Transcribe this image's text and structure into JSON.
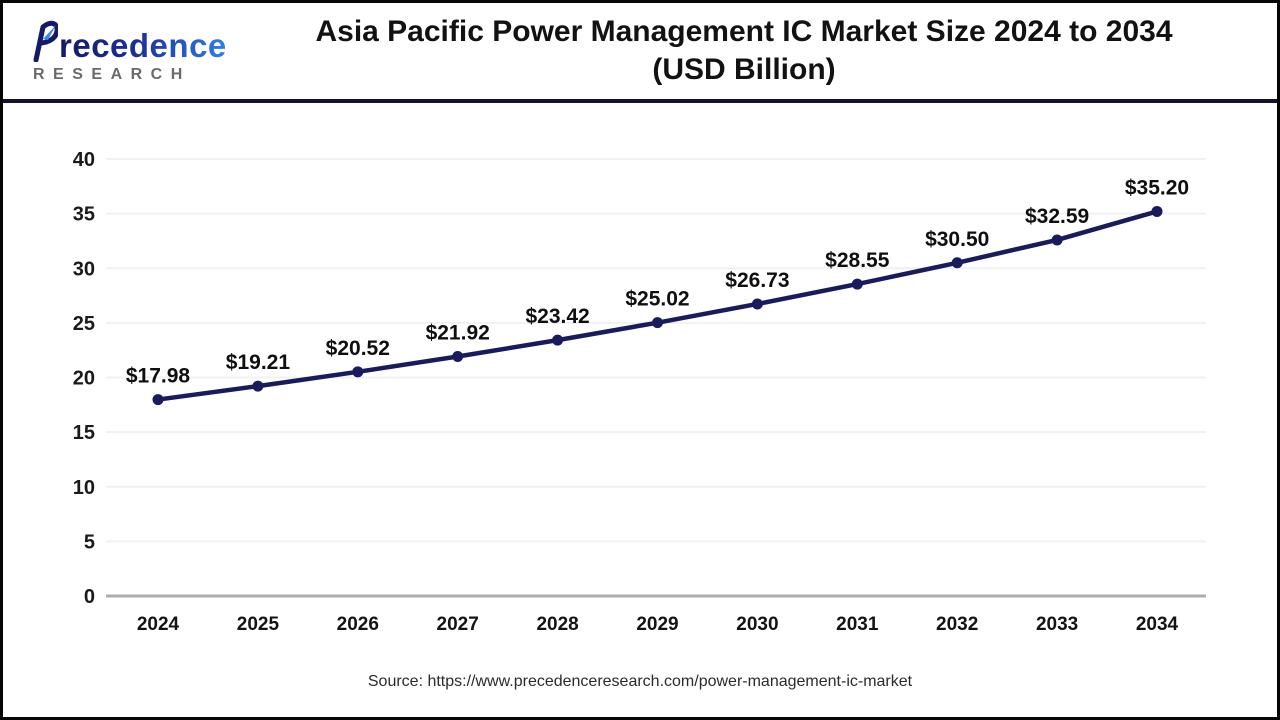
{
  "header": {
    "logo": {
      "brand": "Precedence",
      "brand_rest": "recedence",
      "sub": "RESEARCH"
    },
    "title_line1": "Asia Pacific Power Management IC Market Size 2024 to 2034",
    "title_line2": "(USD Billion)"
  },
  "chart_data": {
    "type": "line",
    "title": "Asia Pacific Power Management IC Market Size 2024 to 2034 (USD Billion)",
    "categories": [
      "2024",
      "2025",
      "2026",
      "2027",
      "2028",
      "2029",
      "2030",
      "2031",
      "2032",
      "2033",
      "2034"
    ],
    "values": [
      17.98,
      19.21,
      20.52,
      21.92,
      23.42,
      25.02,
      26.73,
      28.55,
      30.5,
      32.59,
      35.2
    ],
    "labels": [
      "$17.98",
      "$19.21",
      "$20.52",
      "$21.92",
      "$23.42",
      "$25.02",
      "$26.73",
      "$28.55",
      "$30.50",
      "$32.59",
      "$35.20"
    ],
    "xlabel": "",
    "ylabel": "",
    "ylim": [
      0,
      40
    ],
    "yticks": [
      0,
      5,
      10,
      15,
      20,
      25,
      30,
      35,
      40
    ],
    "grid": true,
    "legend": "none",
    "line_color": "#1a1a5f",
    "point_color": "#1a1a5f",
    "label_color": "#0f0f0f"
  },
  "footer": {
    "source": "Source: https://www.precedenceresearch.com/power-management-ic-market"
  },
  "colors": {
    "header_separator": "#171235",
    "gridline": "#f1f1f1",
    "zero_axis": "#adadad",
    "title_text": "#121212",
    "logo_gradient_start": "#141a66",
    "logo_gradient_end": "#2f7fe8",
    "logo_sub_text": "#6a6a6a"
  }
}
